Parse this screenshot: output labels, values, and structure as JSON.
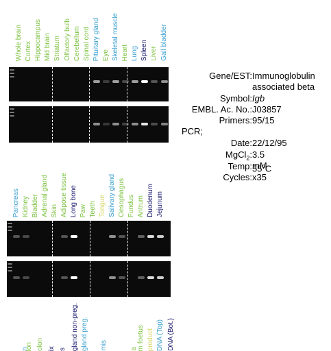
{
  "top_panel": {
    "lanes": [
      {
        "label": "Whole brain",
        "color": "#7dc242"
      },
      {
        "label": "Cortex",
        "color": "#7dc242"
      },
      {
        "label": "Hippocampus",
        "color": "#7dc242"
      },
      {
        "label": "Mid brain",
        "color": "#7dc242"
      },
      {
        "label": "Striatum",
        "color": "#7dc242"
      },
      {
        "label": "Olfactory bulb",
        "color": "#7dc242"
      },
      {
        "label": "Cerebellum",
        "color": "#7dc242"
      },
      {
        "label": "Spinal cord",
        "color": "#7dc242"
      },
      {
        "label": "Pituitary gland",
        "color": "#3aa0d0"
      },
      {
        "label": "Eye",
        "color": "#7dc242"
      },
      {
        "label": "Skeletal muscle",
        "color": "#3aa0d0"
      },
      {
        "label": "Heart",
        "color": "#7dc242"
      },
      {
        "label": "Lung",
        "color": "#3aa0d0"
      },
      {
        "label": "Spleen",
        "color": "#1a1a6e"
      },
      {
        "label": "Liver",
        "color": "#7dc242"
      },
      {
        "label": "Gall bladder",
        "color": "#3aa0d0"
      }
    ]
  },
  "middle_panel": {
    "lanes": [
      {
        "label": "Pancreas",
        "color": "#3aa0d0"
      },
      {
        "label": "Kidney",
        "color": "#7dc242"
      },
      {
        "label": "Bladder",
        "color": "#7dc242"
      },
      {
        "label": "Adrenal gland",
        "color": "#7dc242"
      },
      {
        "label": "Skin",
        "color": "#7dc242"
      },
      {
        "label": "Adipose tissue",
        "color": "#7dc242"
      },
      {
        "label": "Long bone",
        "color": "#1a1a6e"
      },
      {
        "label": "Paw",
        "color": "#7dc242"
      },
      {
        "label": "Teeth",
        "color": "#7dc242"
      },
      {
        "label": "Tongue",
        "color": "#d6d66a"
      },
      {
        "label": "Salivary gland",
        "color": "#3aa0d0"
      },
      {
        "label": "Oesophagus",
        "color": "#7dc242"
      },
      {
        "label": "Fundus",
        "color": "#7dc242"
      },
      {
        "label": "Antrum",
        "color": "#7dc242"
      },
      {
        "label": "Duodenum",
        "color": "#1a1a6e"
      },
      {
        "label": "Jejunum",
        "color": "#1a1a6e"
      }
    ]
  },
  "bottom_panel": {
    "lanes": [
      {
        "label": "n",
        "color": "#3aa0d0"
      },
      {
        "label": "lon",
        "color": "#7dc242"
      },
      {
        "label": "olon",
        "color": "#7dc242"
      },
      {
        "label": "ix",
        "color": "#1a1a6e"
      },
      {
        "label": "s",
        "color": "#1a1a6e"
      },
      {
        "label": "gland non-preg.",
        "color": "#1a1a6e"
      },
      {
        "label": "gland preg.",
        "color": "#3aa0d0"
      },
      {
        "label": "mis",
        "color": "#3aa0d0"
      },
      {
        "label": "a",
        "color": "#7dc242"
      },
      {
        "label": "m foetus",
        "color": "#7dc242"
      },
      {
        "label": "product",
        "color": "#d6d66a"
      },
      {
        "label": "DNA (Top)",
        "color": "#3aa0d0"
      },
      {
        "label": "DNA (Bot.)",
        "color": "#1a1a6e"
      }
    ]
  },
  "info": {
    "gene_label": "Gene/EST:",
    "gene": "Immunoglobulin associated beta",
    "symbol_label": "Symbol:",
    "symbol": "Igb",
    "embl_label": "EMBL. Ac. No.:",
    "embl": "J03857",
    "primers_label": "Primers:",
    "primers": "95/15",
    "pcr": "PCR;",
    "date_label": "Date:",
    "date": "22/12/95",
    "mgcl_label": {
      "text": "MgCl",
      "sub": "2",
      "after": ":"
    },
    "mgcl": "3.5 mM",
    "temp_label": "Temp:",
    "temp": {
      "text": "55",
      "sup": "o",
      "after": "C"
    },
    "cycles_label": "Cycles:",
    "cycles": "x35"
  }
}
